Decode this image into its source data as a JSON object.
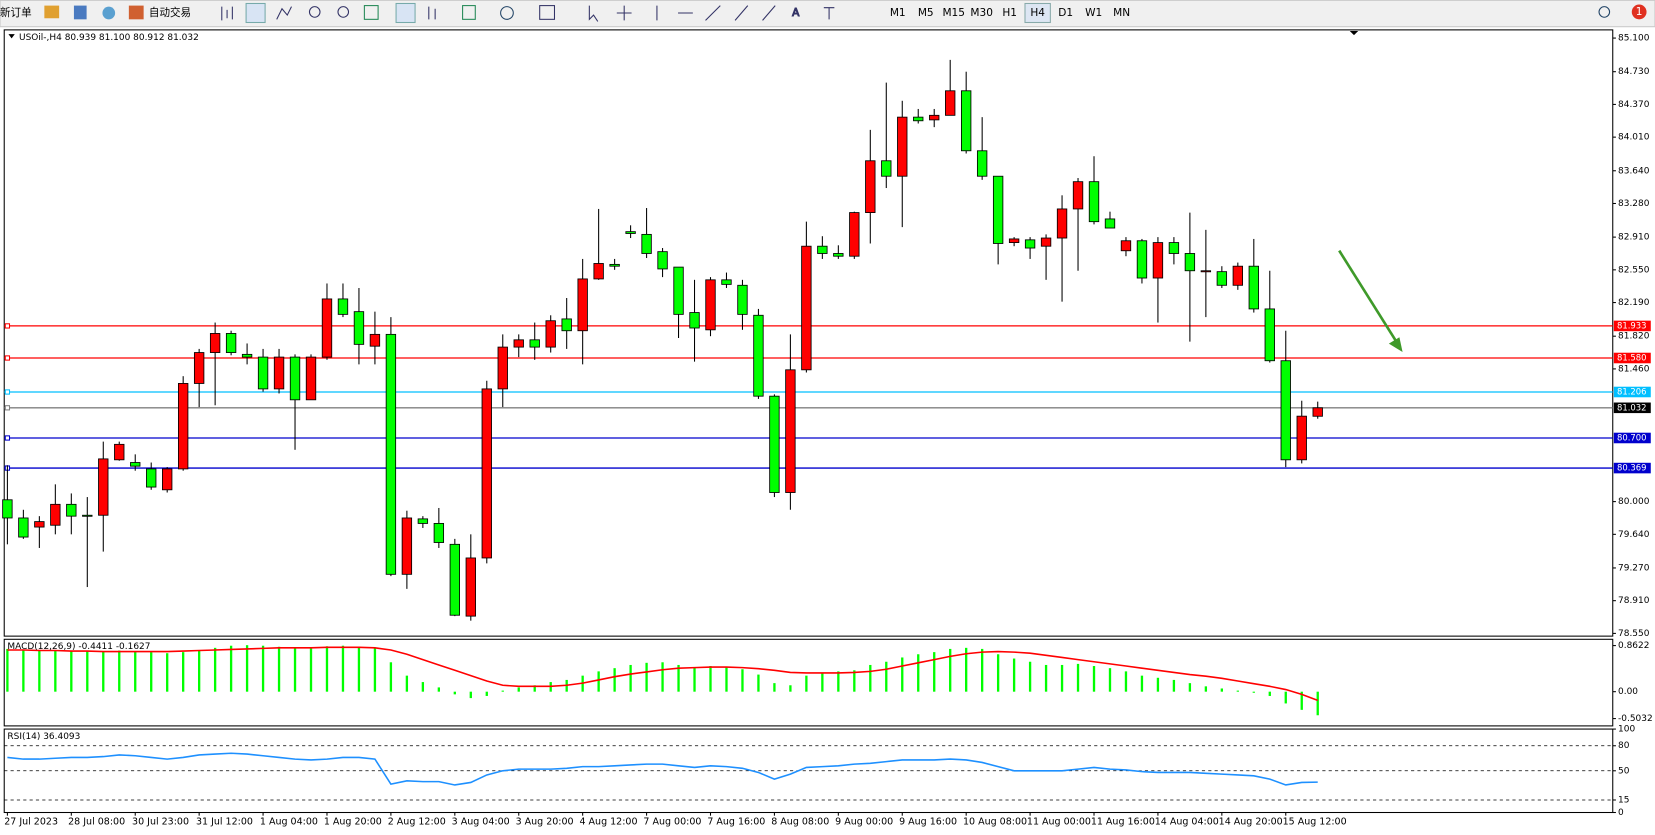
{
  "toolbar": {
    "new_order": "新订单",
    "auto_trading": "自动交易",
    "timeframes": [
      "M1",
      "M5",
      "M15",
      "M30",
      "H1",
      "H4",
      "D1",
      "W1",
      "MN"
    ],
    "badge": "1"
  },
  "chart_data": [
    {
      "type": "candlestick",
      "title": "USOil-,H4  80.939 81.100 80.912 81.032",
      "categories": [
        "27 Jul 2023",
        null,
        null,
        null,
        "28 Jul 08:00",
        null,
        null,
        null,
        "30 Jul 23:00",
        null,
        null,
        null,
        "31 Jul 12:00",
        null,
        null,
        null,
        "1 Aug 04:00",
        null,
        null,
        null,
        "1 Aug 20:00",
        null,
        null,
        null,
        "2 Aug 12:00",
        null,
        null,
        null,
        "3 Aug 04:00",
        null,
        null,
        null,
        "3 Aug 20:00",
        null,
        null,
        null,
        "4 Aug 12:00",
        null,
        null,
        null,
        "7 Aug 00:00",
        null,
        null,
        null,
        "7 Aug 16:00",
        null,
        null,
        null,
        "8 Aug 08:00",
        null,
        null,
        null,
        "9 Aug 00:00",
        null,
        null,
        null,
        "9 Aug 16:00",
        null,
        null,
        null,
        "10 Aug 08:00",
        null,
        null,
        null,
        "11 Aug 00:00",
        null,
        null,
        null,
        "11 Aug 16:00",
        null,
        null,
        null,
        "14 Aug 04:00",
        null,
        null,
        null,
        "14 Aug 20:00",
        null,
        null,
        null,
        "15 Aug 12:00",
        null,
        null
      ],
      "open": [
        80.02,
        79.82,
        79.72,
        79.74,
        79.97,
        79.85,
        79.85,
        80.46,
        80.43,
        80.36,
        80.13,
        80.36,
        81.3,
        81.64,
        81.85,
        81.62,
        81.59,
        81.24,
        81.59,
        81.12,
        81.59,
        82.23,
        82.09,
        81.71,
        81.84,
        79.2,
        79.81,
        79.76,
        79.53,
        78.74,
        79.38,
        81.24,
        81.7,
        81.78,
        81.7,
        82.01,
        81.88,
        82.45,
        82.61,
        82.97,
        82.94,
        82.75,
        82.58,
        82.08,
        81.89,
        82.44,
        82.38,
        82.05,
        81.16,
        80.1,
        81.45,
        82.81,
        82.73,
        82.7,
        83.18,
        83.75,
        83.58,
        84.23,
        84.2,
        84.25,
        84.52,
        83.86,
        83.58,
        82.85,
        82.88,
        82.81,
        82.9,
        83.22,
        83.52,
        83.11,
        82.76,
        82.87,
        82.46,
        82.85,
        82.73,
        82.54,
        82.53,
        82.38,
        82.59,
        82.12,
        81.55,
        80.46,
        80.939
      ],
      "high": [
        80.4,
        79.91,
        79.84,
        80.19,
        80.09,
        80.05,
        80.66,
        80.66,
        80.52,
        80.43,
        80.38,
        81.38,
        81.68,
        81.97,
        81.88,
        81.74,
        81.68,
        81.68,
        81.62,
        81.62,
        82.4,
        82.4,
        82.35,
        82.09,
        82.03,
        79.9,
        79.84,
        79.93,
        79.59,
        79.64,
        81.33,
        81.84,
        81.84,
        81.97,
        82.05,
        82.24,
        82.67,
        83.22,
        82.67,
        83.04,
        83.23,
        82.79,
        82.58,
        82.44,
        82.47,
        82.52,
        82.44,
        82.12,
        81.18,
        81.84,
        83.08,
        82.92,
        82.82,
        83.19,
        84.09,
        84.61,
        84.41,
        84.32,
        84.32,
        84.86,
        84.73,
        84.23,
        83.58,
        82.91,
        82.91,
        82.94,
        83.37,
        83.56,
        83.8,
        83.19,
        82.91,
        82.89,
        82.91,
        82.91,
        83.18,
        82.99,
        82.59,
        82.63,
        82.89,
        82.54,
        81.88,
        81.11,
        81.1
      ],
      "low": [
        79.53,
        79.59,
        79.49,
        79.64,
        79.64,
        79.06,
        79.45,
        80.45,
        80.34,
        80.13,
        80.1,
        80.34,
        81.04,
        81.06,
        81.61,
        81.51,
        81.21,
        81.19,
        80.57,
        81.12,
        81.56,
        82.03,
        81.51,
        81.51,
        79.18,
        79.04,
        79.71,
        79.49,
        78.74,
        78.69,
        79.32,
        81.04,
        81.59,
        81.56,
        81.64,
        81.68,
        81.51,
        82.44,
        82.55,
        82.9,
        82.68,
        82.47,
        81.8,
        81.54,
        81.82,
        82.35,
        81.89,
        81.13,
        80.05,
        79.91,
        81.42,
        82.67,
        82.67,
        82.67,
        82.84,
        83.45,
        83.02,
        84.16,
        84.12,
        84.25,
        83.83,
        83.54,
        82.61,
        82.81,
        82.67,
        82.44,
        82.2,
        82.54,
        83.05,
        83.01,
        82.7,
        82.4,
        81.97,
        82.61,
        81.76,
        82.03,
        82.35,
        82.33,
        82.08,
        81.53,
        80.38,
        80.42,
        80.912
      ],
      "close": [
        79.82,
        79.61,
        79.78,
        79.97,
        79.84,
        79.84,
        80.47,
        80.63,
        80.39,
        80.16,
        80.36,
        81.3,
        81.64,
        81.85,
        81.64,
        81.59,
        81.24,
        81.59,
        81.12,
        81.59,
        82.23,
        82.06,
        81.73,
        81.84,
        79.2,
        79.82,
        79.76,
        79.55,
        78.75,
        79.38,
        81.24,
        81.7,
        81.78,
        81.7,
        81.99,
        81.88,
        82.45,
        82.62,
        82.59,
        82.95,
        82.73,
        82.56,
        82.06,
        81.91,
        82.44,
        82.39,
        82.06,
        81.16,
        80.1,
        81.45,
        82.81,
        82.73,
        82.7,
        83.18,
        83.75,
        83.58,
        84.23,
        84.19,
        84.25,
        84.52,
        83.86,
        83.58,
        82.84,
        82.89,
        82.79,
        82.9,
        83.22,
        83.52,
        83.08,
        83.01,
        82.87,
        82.46,
        82.85,
        82.73,
        82.54,
        82.54,
        82.38,
        82.59,
        82.12,
        81.55,
        80.46,
        80.94,
        81.032
      ],
      "up_color": "#ff0000",
      "down_color": "#00ff00",
      "ylim": [
        78.52,
        85.19
      ],
      "yticks": [
        {
          "value": 85.1,
          "label": "85.100"
        },
        {
          "value": 84.73,
          "label": "84.730"
        },
        {
          "value": 84.37,
          "label": "84.370"
        },
        {
          "value": 84.01,
          "label": "84.010"
        },
        {
          "value": 83.64,
          "label": "83.640"
        },
        {
          "value": 83.28,
          "label": "83.280"
        },
        {
          "value": 82.91,
          "label": "82.910"
        },
        {
          "value": 82.55,
          "label": "82.550"
        },
        {
          "value": 82.19,
          "label": "82.190"
        },
        {
          "value": 81.82,
          "label": "81.820"
        },
        {
          "value": 81.46,
          "label": "81.460"
        },
        {
          "value": 80.0,
          "label": "80.000"
        },
        {
          "value": 79.64,
          "label": "79.640"
        },
        {
          "value": 79.27,
          "label": "79.270"
        },
        {
          "value": 78.91,
          "label": "78.910"
        },
        {
          "value": 78.55,
          "label": "78.550"
        }
      ],
      "levels": [
        {
          "value": 81.933,
          "label": "81.933",
          "color": "#ff0000"
        },
        {
          "value": 81.58,
          "label": "81.580",
          "color": "#ff0000"
        },
        {
          "value": 81.206,
          "label": "81.206",
          "color": "#00bfff"
        },
        {
          "value": 81.032,
          "label": "81.032",
          "color": "#808080"
        },
        {
          "value": 80.7,
          "label": "80.700",
          "color": "#0000cd"
        },
        {
          "value": 80.369,
          "label": "80.369",
          "color": "#0000cd"
        }
      ]
    },
    {
      "type": "macd",
      "title": "MACD(12,26,9) -0.4411 -0.1627",
      "histogram": {
        "color": "#00ff00",
        "values": [
          0.8,
          0.79,
          0.78,
          0.77,
          0.76,
          0.75,
          0.76,
          0.77,
          0.76,
          0.74,
          0.72,
          0.74,
          0.78,
          0.82,
          0.86,
          0.87,
          0.86,
          0.84,
          0.83,
          0.82,
          0.85,
          0.86,
          0.84,
          0.82,
          0.55,
          0.3,
          0.18,
          0.08,
          -0.05,
          -0.12,
          -0.08,
          0.02,
          0.08,
          0.12,
          0.18,
          0.22,
          0.3,
          0.38,
          0.44,
          0.5,
          0.54,
          0.55,
          0.5,
          0.46,
          0.48,
          0.46,
          0.42,
          0.32,
          0.16,
          0.12,
          0.3,
          0.36,
          0.38,
          0.4,
          0.5,
          0.56,
          0.64,
          0.7,
          0.74,
          0.8,
          0.82,
          0.8,
          0.7,
          0.62,
          0.56,
          0.5,
          0.5,
          0.52,
          0.48,
          0.44,
          0.38,
          0.3,
          0.26,
          0.22,
          0.16,
          0.1,
          0.06,
          0.02,
          -0.02,
          -0.08,
          -0.22,
          -0.34,
          -0.4411
        ]
      },
      "signal": {
        "color": "#ff0000",
        "values": [
          0.78,
          0.78,
          0.77,
          0.77,
          0.76,
          0.76,
          0.75,
          0.75,
          0.75,
          0.75,
          0.75,
          0.76,
          0.77,
          0.78,
          0.79,
          0.8,
          0.81,
          0.82,
          0.82,
          0.82,
          0.83,
          0.83,
          0.83,
          0.82,
          0.78,
          0.7,
          0.6,
          0.5,
          0.4,
          0.3,
          0.2,
          0.12,
          0.1,
          0.1,
          0.1,
          0.12,
          0.16,
          0.22,
          0.28,
          0.33,
          0.37,
          0.41,
          0.44,
          0.45,
          0.46,
          0.46,
          0.45,
          0.43,
          0.4,
          0.36,
          0.35,
          0.35,
          0.35,
          0.36,
          0.38,
          0.42,
          0.48,
          0.54,
          0.6,
          0.66,
          0.71,
          0.74,
          0.75,
          0.74,
          0.72,
          0.68,
          0.64,
          0.6,
          0.56,
          0.52,
          0.48,
          0.44,
          0.4,
          0.36,
          0.32,
          0.29,
          0.25,
          0.2,
          0.15,
          0.1,
          0.04,
          -0.05,
          -0.1627
        ]
      },
      "ylim": [
        -0.64,
        0.98
      ],
      "yticks": [
        0.8622,
        {
          "value": 0,
          "label": "0.00"
        },
        -0.5032
      ]
    },
    {
      "type": "line",
      "title": "RSI(14) 36.4093",
      "color": "#1e90ff",
      "values": [
        66,
        64,
        64,
        65,
        66,
        66,
        67,
        69,
        68,
        66,
        64,
        66,
        69,
        70,
        71,
        70,
        68,
        66,
        64,
        63,
        64,
        66,
        66,
        64,
        34,
        38,
        37,
        37,
        33,
        36,
        45,
        50,
        52,
        52,
        52,
        53,
        55,
        55,
        56,
        57,
        58,
        58,
        56,
        54,
        56,
        55,
        53,
        48,
        40,
        46,
        54,
        55,
        56,
        58,
        59,
        61,
        63,
        63,
        63,
        64,
        63,
        60,
        55,
        50,
        50,
        50,
        50,
        52,
        54,
        52,
        51,
        49,
        48,
        48,
        48,
        47,
        46,
        45,
        44,
        40,
        33,
        36,
        36.4093
      ],
      "ylim": [
        0,
        100
      ],
      "yticks": [
        0,
        15,
        50,
        80,
        100
      ]
    }
  ]
}
